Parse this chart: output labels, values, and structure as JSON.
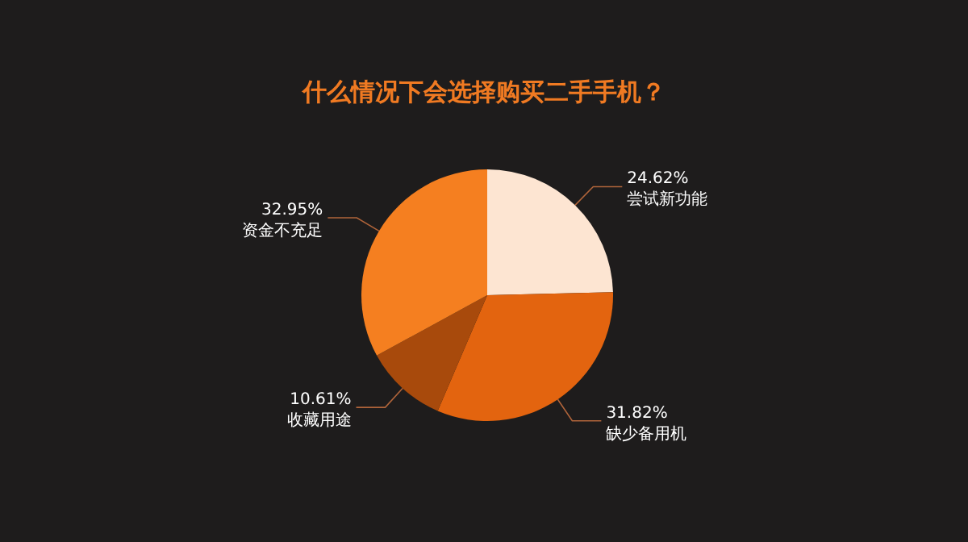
{
  "chart_data": {
    "type": "pie",
    "title": "什么情况下会选择购买二手手机？",
    "categories": [
      "尝试新功能",
      "缺少备用机",
      "收藏用途",
      "资金不充足"
    ],
    "values": [
      24.62,
      31.82,
      10.61,
      32.95
    ],
    "colors": [
      "#fde5d2",
      "#e3640f",
      "#a84a0c",
      "#f57f20"
    ],
    "value_labels": [
      "24.62%",
      "31.82%",
      "10.61%",
      "32.95%"
    ]
  }
}
